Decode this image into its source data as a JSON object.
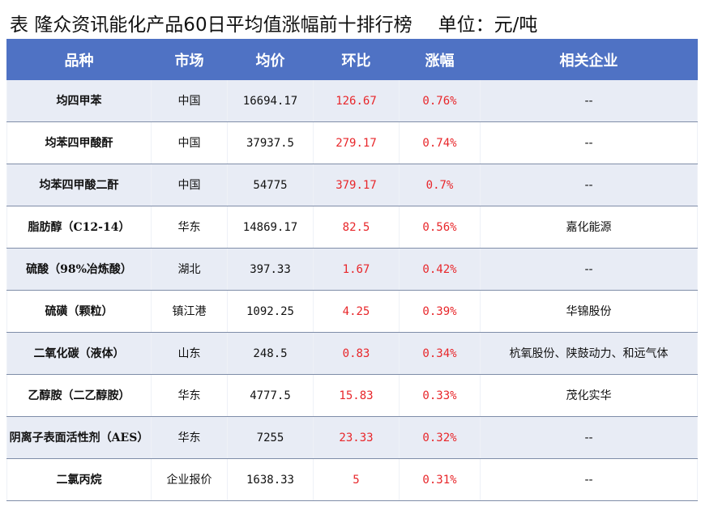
{
  "title": {
    "text": "表  隆众资讯能化产品60日平均值涨幅前十排行榜",
    "unit": "单位：元/吨"
  },
  "table": {
    "headers": [
      "品种",
      "市场",
      "均价",
      "环比",
      "涨幅",
      "相关企业"
    ],
    "rows": [
      {
        "name": "均四甲苯",
        "market": "中国",
        "price": "16694.17",
        "change": "126.67",
        "pct": "0.76%",
        "company": "--"
      },
      {
        "name": "均苯四甲酸酐",
        "market": "中国",
        "price": "37937.5",
        "change": "279.17",
        "pct": "0.74%",
        "company": "--"
      },
      {
        "name": "均苯四甲酸二酐",
        "market": "中国",
        "price": "54775",
        "change": "379.17",
        "pct": "0.7%",
        "company": "--"
      },
      {
        "name": "脂肪醇（C12-14）",
        "market": "华东",
        "price": "14869.17",
        "change": "82.5",
        "pct": "0.56%",
        "company": "嘉化能源"
      },
      {
        "name": "硫酸（98%冶炼酸）",
        "market": "湖北",
        "price": "397.33",
        "change": "1.67",
        "pct": "0.42%",
        "company": "--"
      },
      {
        "name": "硫磺（颗粒）",
        "market": "镇江港",
        "price": "1092.25",
        "change": "4.25",
        "pct": "0.39%",
        "company": "华锦股份"
      },
      {
        "name": "二氧化碳（液体）",
        "market": "山东",
        "price": "248.5",
        "change": "0.83",
        "pct": "0.34%",
        "company": "杭氧股份、陕鼓动力、和远气体"
      },
      {
        "name": "乙醇胺（二乙醇胺）",
        "market": "华东",
        "price": "4777.5",
        "change": "15.83",
        "pct": "0.33%",
        "company": "茂化实华"
      },
      {
        "name": "阴离子表面活性剂（AES）",
        "market": "华东",
        "price": "7255",
        "change": "23.33",
        "pct": "0.32%",
        "company": "--"
      },
      {
        "name": "二氯丙烷",
        "market": "企业报价",
        "price": "1638.33",
        "change": "5",
        "pct": "0.31%",
        "company": "--"
      }
    ]
  },
  "colors": {
    "header_bg": "#4f72c4",
    "header_text": "#ffffff",
    "odd_row_bg": "#e8ecf5",
    "even_row_bg": "#ffffff",
    "positive_text": "#e8262a"
  }
}
